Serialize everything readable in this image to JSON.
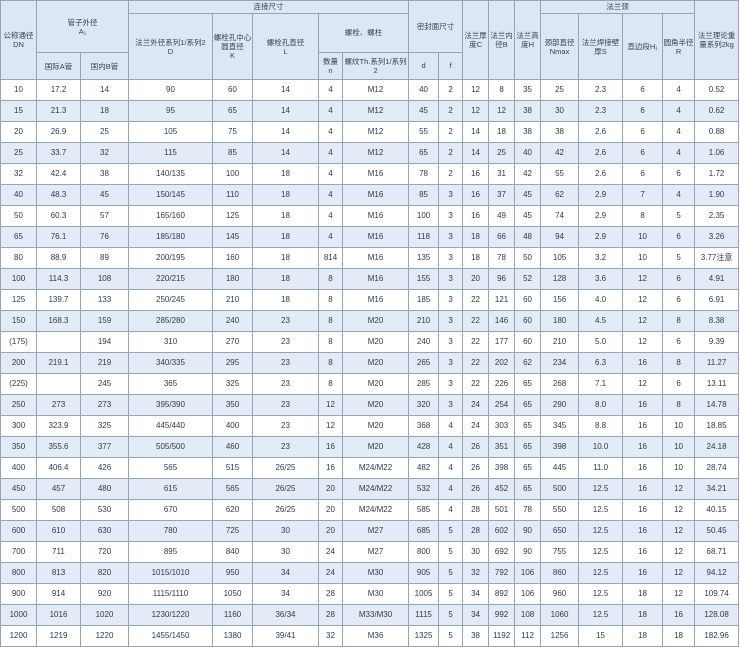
{
  "headers": {
    "dn": "公称通径DN",
    "pipe_od": "管子外径",
    "pipe_od_sym": "A₁",
    "intl_pipe": "国际A管",
    "domestic_pipe": "国内B管",
    "connection": "连接尺寸",
    "flange_od": "法兰外径系列1/系列2",
    "flange_od_sym": "D",
    "bolt_center": "螺栓孔中心圆直径",
    "bolt_center_sym": "K",
    "bolt_hole": "螺栓孔直径",
    "bolt_hole_sym": "L",
    "bolts": "螺栓、螺柱",
    "bolt_count": "数量",
    "bolt_count_sym": "n",
    "thread": "螺纹Th.系列1/系列2",
    "seal": "密封面尺寸",
    "seal_d": "d",
    "seal_f": "f",
    "flange_thickness": "法兰厚度C",
    "flange_id": "法兰内径B",
    "flange_height": "法兰高度H",
    "neck": "法兰颈",
    "neck_base": "颈部直径Nmax",
    "neck_wall": "法兰焊接壁厚S",
    "straight": "直边段H₁",
    "fillet": "圆角半径R",
    "weight": "法兰理论重量系列2kg"
  },
  "rows": [
    [
      "10",
      "17.2",
      "14",
      "90",
      "60",
      "14",
      "4",
      "M12",
      "40",
      "2",
      "12",
      "8",
      "35",
      "25",
      "2.3",
      "6",
      "4",
      "0.52"
    ],
    [
      "15",
      "21.3",
      "18",
      "95",
      "65",
      "14",
      "4",
      "M12",
      "45",
      "2",
      "12",
      "12",
      "38",
      "30",
      "2.3",
      "6",
      "4",
      "0.62"
    ],
    [
      "20",
      "26.9",
      "25",
      "105",
      "75",
      "14",
      "4",
      "M12",
      "55",
      "2",
      "14",
      "18",
      "38",
      "38",
      "2.6",
      "6",
      "4",
      "0.88"
    ],
    [
      "25",
      "33.7",
      "32",
      "115",
      "85",
      "14",
      "4",
      "M12",
      "65",
      "2",
      "14",
      "25",
      "40",
      "42",
      "2.6",
      "6",
      "4",
      "1.06"
    ],
    [
      "32",
      "42.4",
      "38",
      "140/135",
      "100",
      "18",
      "4",
      "M16",
      "78",
      "2",
      "16",
      "31",
      "42",
      "55",
      "2.6",
      "6",
      "6",
      "1.72"
    ],
    [
      "40",
      "48.3",
      "45",
      "150/145",
      "110",
      "18",
      "4",
      "M16",
      "85",
      "3",
      "16",
      "37",
      "45",
      "62",
      "2.9",
      "7",
      "4",
      "1.90"
    ],
    [
      "50",
      "60.3",
      "57",
      "165/160",
      "125",
      "18",
      "4",
      "M16",
      "100",
      "3",
      "16",
      "49",
      "45",
      "74",
      "2.9",
      "8",
      "5",
      "2.35"
    ],
    [
      "65",
      "76.1",
      "76",
      "185/180",
      "145",
      "18",
      "4",
      "M16",
      "118",
      "3",
      "18",
      "66",
      "48",
      "94",
      "2.9",
      "10",
      "6",
      "3.26"
    ],
    [
      "80",
      "88.9",
      "89",
      "200/195",
      "160",
      "18",
      "814",
      "M16",
      "135",
      "3",
      "18",
      "78",
      "50",
      "105",
      "3.2",
      "10",
      "5",
      "3.77注意"
    ],
    [
      "100",
      "114.3",
      "108",
      "220/215",
      "180",
      "18",
      "8",
      "M16",
      "155",
      "3",
      "20",
      "96",
      "52",
      "128",
      "3.6",
      "12",
      "6",
      "4.91"
    ],
    [
      "125",
      "139.7",
      "133",
      "250/245",
      "210",
      "18",
      "8",
      "M16",
      "185",
      "3",
      "22",
      "121",
      "60",
      "156",
      "4.0",
      "12",
      "6",
      "6.91"
    ],
    [
      "150",
      "168.3",
      "159",
      "285/280",
      "240",
      "23",
      "8",
      "M20",
      "210",
      "3",
      "22",
      "146",
      "60",
      "180",
      "4.5",
      "12",
      "8",
      "8.38"
    ],
    [
      "(175)",
      "",
      "194",
      "310",
      "270",
      "23",
      "8",
      "M20",
      "240",
      "3",
      "22",
      "177",
      "60",
      "210",
      "5.0",
      "12",
      "6",
      "9.39"
    ],
    [
      "200",
      "219.1",
      "219",
      "340/335",
      "295",
      "23",
      "8",
      "M20",
      "265",
      "3",
      "22",
      "202",
      "62",
      "234",
      "6.3",
      "16",
      "8",
      "11.27"
    ],
    [
      "(225)",
      "",
      "245",
      "365",
      "325",
      "23",
      "8",
      "M20",
      "285",
      "3",
      "22",
      "226",
      "65",
      "268",
      "7.1",
      "12",
      "6",
      "13.11"
    ],
    [
      "250",
      "273",
      "273",
      "395/390",
      "350",
      "23",
      "12",
      "M20",
      "320",
      "3",
      "24",
      "254",
      "65",
      "290",
      "8.0",
      "16",
      "8",
      "14.78"
    ],
    [
      "300",
      "323.9",
      "325",
      "445/440",
      "400",
      "23",
      "12",
      "M20",
      "368",
      "4",
      "24",
      "303",
      "65",
      "345",
      "8.8",
      "16",
      "10",
      "18.85"
    ],
    [
      "350",
      "355.6",
      "377",
      "505/500",
      "460",
      "23",
      "16",
      "M20",
      "428",
      "4",
      "26",
      "351",
      "65",
      "398",
      "10.0",
      "16",
      "10",
      "24.18"
    ],
    [
      "400",
      "406.4",
      "426",
      "565",
      "515",
      "26/25",
      "16",
      "M24/M22",
      "482",
      "4",
      "26",
      "398",
      "65",
      "445",
      "11.0",
      "16",
      "10",
      "28.74"
    ],
    [
      "450",
      "457",
      "480",
      "615",
      "565",
      "26/25",
      "20",
      "M24/M22",
      "532",
      "4",
      "26",
      "452",
      "65",
      "500",
      "12.5",
      "16",
      "12",
      "34.21"
    ],
    [
      "500",
      "508",
      "530",
      "670",
      "620",
      "26/25",
      "20",
      "M24/M22",
      "585",
      "4",
      "28",
      "501",
      "78",
      "550",
      "12.5",
      "16",
      "12",
      "40.15"
    ],
    [
      "600",
      "610",
      "630",
      "780",
      "725",
      "30",
      "20",
      "M27",
      "685",
      "5",
      "28",
      "602",
      "90",
      "650",
      "12.5",
      "16",
      "12",
      "50.45"
    ],
    [
      "700",
      "711",
      "720",
      "895",
      "840",
      "30",
      "24",
      "M27",
      "800",
      "5",
      "30",
      "692",
      "90",
      "755",
      "12.5",
      "16",
      "12",
      "68.71"
    ],
    [
      "800",
      "813",
      "820",
      "1015/1010",
      "950",
      "34",
      "24",
      "M30",
      "905",
      "5",
      "32",
      "792",
      "106",
      "860",
      "12.5",
      "16",
      "12",
      "94.12"
    ],
    [
      "900",
      "914",
      "920",
      "1115/1110",
      "1050",
      "34",
      "28",
      "M30",
      "1005",
      "5",
      "34",
      "892",
      "106",
      "960",
      "12.5",
      "18",
      "12",
      "109.74"
    ],
    [
      "1000",
      "1016",
      "1020",
      "1230/1220",
      "1160",
      "36/34",
      "28",
      "M33/M30",
      "1115",
      "5",
      "34",
      "992",
      "108",
      "1060",
      "12.5",
      "18",
      "16",
      "128.08"
    ],
    [
      "1200",
      "1219",
      "1220",
      "1455/1450",
      "1380",
      "39/41",
      "32",
      "M36",
      "1325",
      "5",
      "38",
      "1192",
      "112",
      "1256",
      "15",
      "18",
      "18",
      "182.96"
    ]
  ]
}
